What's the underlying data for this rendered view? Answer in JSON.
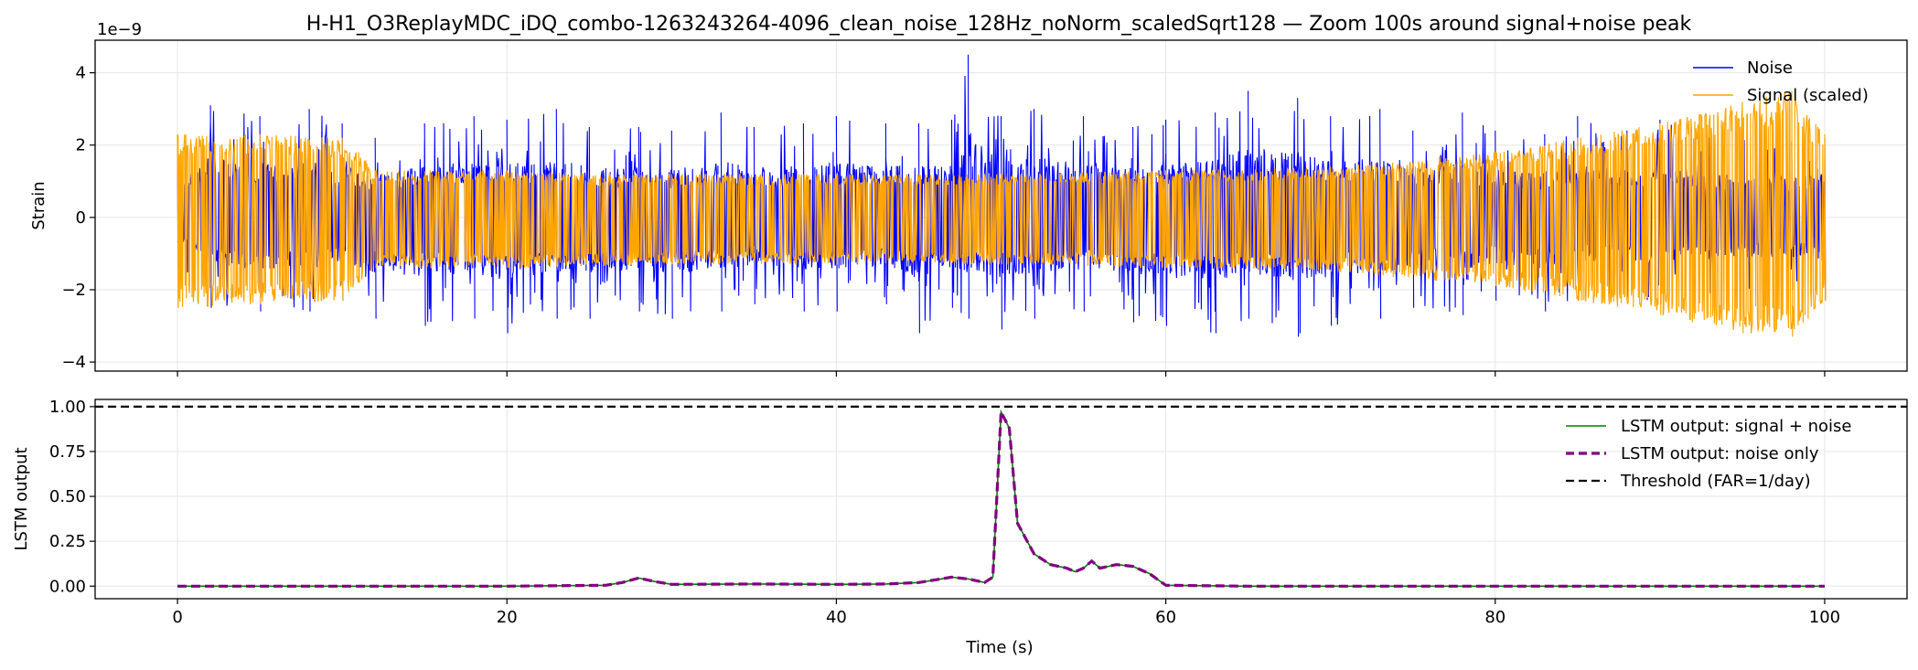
{
  "chart_data": [
    {
      "panel": "top",
      "type": "line",
      "title": "H-H1_O3ReplayMDC_iDQ_combo-1263243264-4096_clean_noise_128Hz_noNorm_scaledSqrt128 — Zoom 100s around signal+noise peak",
      "xlabel": "",
      "ylabel": "Strain",
      "y_offset_label": "1e−9",
      "xlim": [
        -5,
        105
      ],
      "ylim": [
        -4.25,
        4.9
      ],
      "x_ticks": [
        0,
        20,
        40,
        60,
        80,
        100
      ],
      "y_ticks": [
        -4,
        -2,
        0,
        2,
        4
      ],
      "y_tick_labels": [
        "−4",
        "−2",
        "0",
        "2",
        "4"
      ],
      "grid": true,
      "legend_position": "top-right",
      "series": [
        {
          "name": "Noise",
          "color": "#0000ff",
          "envelope_x": [
            0,
            2,
            5,
            8,
            10,
            12,
            15,
            18,
            20,
            23,
            25,
            28,
            30,
            33,
            35,
            38,
            40,
            43,
            45,
            47,
            48,
            50,
            52,
            55,
            58,
            60,
            63,
            65,
            68,
            70,
            73,
            75,
            78,
            80,
            83,
            85,
            88,
            90,
            93,
            95,
            98,
            100
          ],
          "envelope_max": [
            1.8,
            3.1,
            2.8,
            3.0,
            2.6,
            2.2,
            2.6,
            2.8,
            2.7,
            3.0,
            2.5,
            2.5,
            2.4,
            2.9,
            2.5,
            2.6,
            2.8,
            2.6,
            2.6,
            2.7,
            4.5,
            2.8,
            3.0,
            2.8,
            2.5,
            2.7,
            2.9,
            3.5,
            3.3,
            2.8,
            3.0,
            2.4,
            2.9,
            2.4,
            2.3,
            2.8,
            2.4,
            2.7,
            2.2,
            2.2,
            2.1,
            2.2
          ],
          "envelope_min": [
            -1.4,
            -2.5,
            -2.6,
            -2.6,
            -2.3,
            -2.8,
            -3.0,
            -2.8,
            -3.2,
            -2.8,
            -2.8,
            -2.6,
            -2.8,
            -2.6,
            -2.4,
            -2.6,
            -2.6,
            -2.4,
            -3.2,
            -2.5,
            -2.8,
            -3.1,
            -2.8,
            -2.6,
            -2.9,
            -3.0,
            -3.2,
            -2.8,
            -3.3,
            -3.0,
            -2.8,
            -2.5,
            -2.7,
            -2.3,
            -2.6,
            -2.3,
            -2.2,
            -2.4,
            -2.1,
            -2.0,
            -2.0,
            -2.3
          ]
        },
        {
          "name": "Signal (scaled)",
          "color": "#ffa500",
          "envelope_x": [
            0,
            5,
            10,
            11,
            12,
            20,
            30,
            40,
            50,
            60,
            70,
            80,
            85,
            90,
            95,
            98,
            100
          ],
          "envelope_max": [
            2.3,
            2.3,
            2.2,
            1.8,
            1.3,
            1.3,
            1.2,
            1.2,
            1.2,
            1.3,
            1.4,
            1.8,
            2.2,
            2.6,
            3.2,
            3.5,
            2.3
          ],
          "envelope_min": [
            -2.5,
            -2.4,
            -2.3,
            -1.8,
            -1.4,
            -1.4,
            -1.3,
            -1.3,
            -1.3,
            -1.4,
            -1.5,
            -1.9,
            -2.3,
            -2.7,
            -3.2,
            -3.3,
            -2.3
          ]
        }
      ]
    },
    {
      "panel": "bottom",
      "type": "line",
      "xlabel": "Time (s)",
      "ylabel": "LSTM output",
      "xlim": [
        -5,
        105
      ],
      "ylim": [
        -0.07,
        1.04
      ],
      "x_ticks": [
        0,
        20,
        40,
        60,
        80,
        100
      ],
      "x_tick_labels": [
        "0",
        "20",
        "40",
        "60",
        "80",
        "100"
      ],
      "y_ticks": [
        0.0,
        0.25,
        0.5,
        0.75,
        1.0
      ],
      "y_tick_labels": [
        "0.00",
        "0.25",
        "0.50",
        "0.75",
        "1.00"
      ],
      "grid": true,
      "legend_position": "top-right",
      "series": [
        {
          "name": "LSTM output: signal + noise",
          "color": "#008000",
          "style": "solid",
          "x": [
            0,
            10,
            20,
            26,
            27,
            28,
            29,
            30,
            35,
            40,
            43,
            45,
            46,
            47,
            48,
            49,
            49.5,
            50,
            50.5,
            51,
            52,
            53,
            54,
            54.5,
            55,
            55.5,
            56,
            57,
            58,
            59,
            60,
            65,
            70,
            80,
            90,
            100
          ],
          "y": [
            0.0,
            0.0,
            0.0,
            0.005,
            0.02,
            0.045,
            0.025,
            0.01,
            0.012,
            0.01,
            0.012,
            0.02,
            0.035,
            0.05,
            0.04,
            0.02,
            0.05,
            0.97,
            0.88,
            0.35,
            0.18,
            0.12,
            0.1,
            0.08,
            0.1,
            0.14,
            0.1,
            0.12,
            0.11,
            0.07,
            0.005,
            0.0,
            0.0,
            0.0,
            0.0,
            0.0
          ]
        },
        {
          "name": "LSTM output: noise only",
          "color": "#800080",
          "style": "dashed",
          "x": [
            0,
            10,
            20,
            26,
            27,
            28,
            29,
            30,
            35,
            40,
            43,
            45,
            46,
            47,
            48,
            49,
            49.5,
            50,
            50.5,
            51,
            52,
            53,
            54,
            54.5,
            55,
            55.5,
            56,
            57,
            58,
            59,
            60,
            65,
            70,
            80,
            90,
            100
          ],
          "y": [
            0.0,
            0.0,
            0.0,
            0.005,
            0.02,
            0.045,
            0.025,
            0.01,
            0.012,
            0.01,
            0.012,
            0.02,
            0.035,
            0.05,
            0.04,
            0.02,
            0.05,
            0.97,
            0.88,
            0.35,
            0.18,
            0.12,
            0.1,
            0.08,
            0.1,
            0.14,
            0.1,
            0.12,
            0.11,
            0.07,
            0.005,
            0.0,
            0.0,
            0.0,
            0.0,
            0.0
          ]
        },
        {
          "name": "Threshold (FAR=1/day)",
          "color": "#000000",
          "style": "dashed",
          "y_const": 1.0
        }
      ]
    }
  ]
}
